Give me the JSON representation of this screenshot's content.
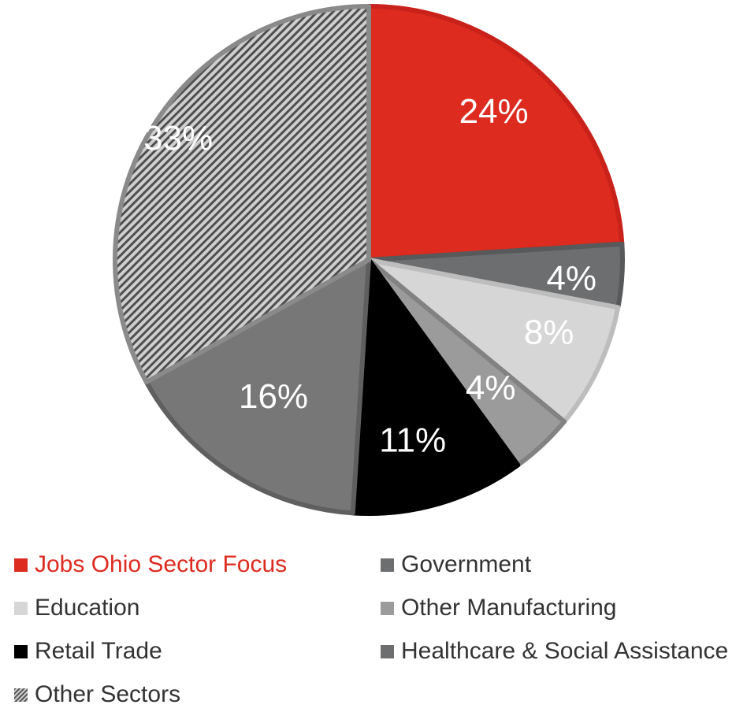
{
  "chart_data": {
    "type": "pie",
    "title": "",
    "start_angle_deg": 0,
    "direction": "clockwise",
    "legend_position": "bottom",
    "slices": [
      {
        "name": "Jobs Ohio Sector Focus",
        "value": 24,
        "label": "24%",
        "color": "#dd2b1f",
        "stroke": "#c9221a",
        "pattern": "solid"
      },
      {
        "name": "Government",
        "value": 4,
        "label": "4%",
        "color": "#6d6e70",
        "stroke": "#58595b",
        "pattern": "solid"
      },
      {
        "name": "Education",
        "value": 8,
        "label": "8%",
        "color": "#d6d6d6",
        "stroke": "#bdbdbd",
        "pattern": "solid"
      },
      {
        "name": "Other Manufacturing",
        "value": 4,
        "label": "4%",
        "color": "#9b9b9b",
        "stroke": "#828282",
        "pattern": "solid"
      },
      {
        "name": "Retail Trade",
        "value": 11,
        "label": "11%",
        "color": "#000000",
        "stroke": "#000000",
        "pattern": "solid"
      },
      {
        "name": "Healthcare & Social Assistance",
        "value": 16,
        "label": "16%",
        "color": "#777777",
        "stroke": "#5f5f5f",
        "pattern": "solid"
      },
      {
        "name": "Other Sectors",
        "value": 33,
        "label": "33%",
        "color": "#b5b5b5",
        "stroke": "#8a8a8a",
        "pattern": "diagonal-stripes",
        "stripe_color": "#4f4f4f"
      }
    ]
  },
  "legend": {
    "items": [
      {
        "label": "Jobs Ohio Sector Focus",
        "text_color": "#dd2b1f",
        "swatch_color": "#dd2b1f",
        "swatch_pattern": "solid"
      },
      {
        "label": "Government",
        "text_color": "#333333",
        "swatch_color": "#6d6e70",
        "swatch_pattern": "solid"
      },
      {
        "label": "Education",
        "text_color": "#333333",
        "swatch_color": "#d6d6d6",
        "swatch_pattern": "solid"
      },
      {
        "label": "Other Manufacturing",
        "text_color": "#333333",
        "swatch_color": "#9b9b9b",
        "swatch_pattern": "solid"
      },
      {
        "label": "Retail Trade",
        "text_color": "#333333",
        "swatch_color": "#000000",
        "swatch_pattern": "solid"
      },
      {
        "label": "Healthcare & Social Assistance",
        "text_color": "#333333",
        "swatch_color": "#6d6e70",
        "swatch_pattern": "solid"
      },
      {
        "label": "Other Sectors",
        "text_color": "#333333",
        "swatch_color": "#b5b5b5",
        "swatch_pattern": "diagonal-stripes"
      }
    ]
  }
}
